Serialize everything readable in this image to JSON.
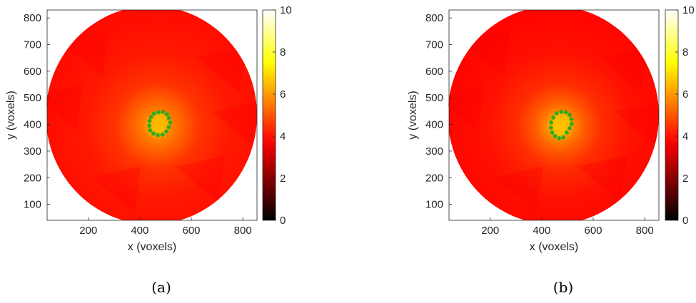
{
  "chart_data": [
    {
      "type": "heatmap",
      "panel_label": "(a)",
      "xlabel": "x (voxels)",
      "ylabel": "y (voxels)",
      "xlim": [
        40,
        855
      ],
      "ylim": [
        40,
        830
      ],
      "xticks": [
        200,
        400,
        600,
        800
      ],
      "yticks": [
        100,
        200,
        300,
        400,
        500,
        600,
        700,
        800
      ],
      "colorbar": {
        "min": 0,
        "max": 10,
        "ticks": [
          0,
          2,
          4,
          6,
          8,
          10
        ],
        "colormap": "hot"
      },
      "domain": {
        "shape": "circle",
        "center": [
          445,
          435
        ],
        "radius": 410,
        "background_value": 3.9
      },
      "hotspot": {
        "center": [
          470,
          395
        ],
        "peak_value": 6.8,
        "core_radius": 55
      },
      "boundary_markers": {
        "color": "#22aa22",
        "points": [
          [
            455,
            440
          ],
          [
            472,
            446
          ],
          [
            490,
            447
          ],
          [
            505,
            438
          ],
          [
            513,
            424
          ],
          [
            518,
            407
          ],
          [
            512,
            390
          ],
          [
            503,
            374
          ],
          [
            488,
            362
          ],
          [
            470,
            360
          ],
          [
            453,
            366
          ],
          [
            440,
            378
          ],
          [
            437,
            395
          ],
          [
            438,
            413
          ],
          [
            444,
            428
          ]
        ]
      }
    },
    {
      "type": "heatmap",
      "panel_label": "(b)",
      "xlabel": "x (voxels)",
      "ylabel": "y (voxels)",
      "xlim": [
        40,
        855
      ],
      "ylim": [
        40,
        830
      ],
      "xticks": [
        200,
        400,
        600,
        800
      ],
      "yticks": [
        100,
        200,
        300,
        400,
        500,
        600,
        700,
        800
      ],
      "colorbar": {
        "min": 0,
        "max": 10,
        "ticks": [
          0,
          2,
          4,
          6,
          8,
          10
        ],
        "colormap": "hot"
      },
      "domain": {
        "shape": "circle",
        "center": [
          445,
          435
        ],
        "radius": 410,
        "background_value": 3.8
      },
      "hotspot": {
        "center": [
          470,
          395
        ],
        "peak_value": 6.9,
        "core_radius": 70
      },
      "boundary_markers": {
        "color": "#22aa22",
        "points": [
          [
            458,
            442
          ],
          [
            476,
            447
          ],
          [
            494,
            446
          ],
          [
            508,
            436
          ],
          [
            515,
            420
          ],
          [
            516,
            402
          ],
          [
            508,
            386
          ],
          [
            497,
            370
          ],
          [
            484,
            352
          ],
          [
            468,
            348
          ],
          [
            452,
            356
          ],
          [
            441,
            370
          ],
          [
            436,
            388
          ],
          [
            437,
            408
          ],
          [
            445,
            426
          ]
        ]
      }
    }
  ]
}
